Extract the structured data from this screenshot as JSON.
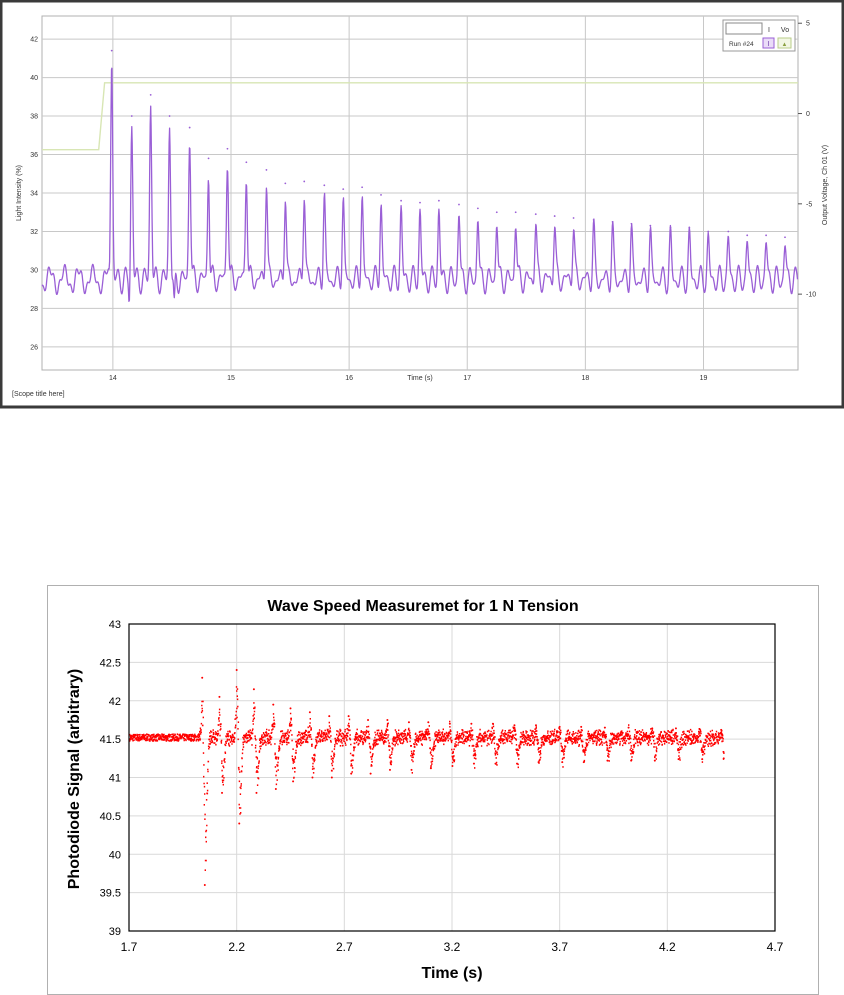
{
  "chart_data": [
    {
      "type": "line",
      "xlabel": "Time (s)",
      "ylabel": "Light Intensity (%)",
      "y2label": "Output Voltage, Ch 01 (V)",
      "footer": "[Scope title here]",
      "xlim": [
        13.4,
        19.8
      ],
      "ylim": [
        24.8,
        43.2
      ],
      "y2lim": [
        -14.2,
        5.4
      ],
      "xticks": [
        14,
        15,
        16,
        17,
        18,
        19
      ],
      "yticks": [
        26,
        28,
        30,
        32,
        34,
        36,
        38,
        40,
        42
      ],
      "y2ticks": [
        -10,
        -5,
        0,
        5
      ],
      "grid": true,
      "legend": {
        "position": "top-right",
        "col1": "I",
        "col2": "Vo",
        "run_label": "Run #24",
        "icon1": "I",
        "icon2": "▲"
      },
      "colors": {
        "intensity": "#9a5fd6",
        "voltage": "#d8e6b4",
        "grid": "#c8c8c8",
        "border": "#3a3a3a"
      },
      "series": [
        {
          "name": "I",
          "baseline": 29.5,
          "peak_times": [
            13.99,
            14.16,
            14.32,
            14.48,
            14.65,
            14.81,
            14.97,
            15.13,
            15.3,
            15.46,
            15.62,
            15.79,
            15.95,
            16.11,
            16.27,
            16.44,
            16.6,
            16.76,
            16.93,
            17.09,
            17.25,
            17.41,
            17.58,
            17.74,
            17.9,
            18.07,
            18.23,
            18.39,
            18.55,
            18.72,
            18.88,
            19.04,
            19.21,
            19.37,
            19.53,
            19.69
          ],
          "peak_values": [
            41.4,
            38.0,
            39.1,
            38.0,
            37.4,
            35.8,
            36.3,
            35.6,
            35.2,
            34.5,
            34.6,
            34.4,
            34.2,
            34.3,
            33.9,
            33.6,
            33.5,
            33.6,
            33.4,
            33.2,
            33.0,
            33.0,
            32.9,
            32.8,
            32.7,
            32.6,
            32.5,
            32.4,
            32.3,
            32.2,
            32.2,
            32.0,
            32.0,
            31.8,
            31.8,
            31.7
          ],
          "dip_times": [
            14.14,
            14.52,
            14.82
          ],
          "dip_values": [
            27.9,
            27.6,
            28.4
          ]
        },
        {
          "name": "Vo",
          "points": [
            [
              13.4,
              -2.0
            ],
            [
              13.88,
              -2.0
            ],
            [
              13.93,
              1.7
            ],
            [
              19.8,
              1.7
            ]
          ]
        }
      ]
    },
    {
      "type": "scatter",
      "title": "Wave Speed Measuremet for 1 N Tension",
      "xlabel": "Time (s)",
      "ylabel": "Photodiode Signal (arbitrary)",
      "xlim": [
        1.7,
        4.7
      ],
      "ylim": [
        39,
        43
      ],
      "xticks": [
        "1.7",
        "2.2",
        "2.7",
        "3.2",
        "3.7",
        "4.2",
        "4.7"
      ],
      "yticks": [
        "39",
        "39.5",
        "40",
        "40.5",
        "41",
        "41.5",
        "42",
        "42.5",
        "43"
      ],
      "grid": true,
      "colors": {
        "series": "#ff0000",
        "grid": "#d9d9d9",
        "frame": "#000000"
      },
      "series": [
        {
          "baseline": 41.52,
          "data_end": 4.46,
          "pulse_times": [
            2.04,
            2.12,
            2.2,
            2.28,
            2.37,
            2.45,
            2.54,
            2.63,
            2.72,
            2.81,
            2.9,
            3.0,
            3.09,
            3.19,
            3.29,
            3.39,
            3.49,
            3.59,
            3.7,
            3.8,
            3.91,
            4.02,
            4.13,
            4.24,
            4.35,
            4.45
          ],
          "pulse_highs": [
            42.3,
            42.05,
            42.4,
            42.15,
            41.95,
            41.9,
            41.85,
            41.8,
            41.8,
            41.75,
            41.75,
            41.72,
            41.72,
            41.7,
            41.7,
            41.7,
            41.68,
            41.68,
            41.66,
            41.66,
            41.65,
            41.65,
            41.64,
            41.64,
            41.63,
            41.62
          ],
          "pulse_lows": [
            39.6,
            40.8,
            40.4,
            40.8,
            40.85,
            40.95,
            41.0,
            41.0,
            41.05,
            41.05,
            41.1,
            41.1,
            41.12,
            41.15,
            41.18,
            41.18,
            41.18,
            41.2,
            41.2,
            41.2,
            41.22,
            41.22,
            41.22,
            41.24,
            41.24,
            41.25
          ]
        }
      ]
    }
  ]
}
